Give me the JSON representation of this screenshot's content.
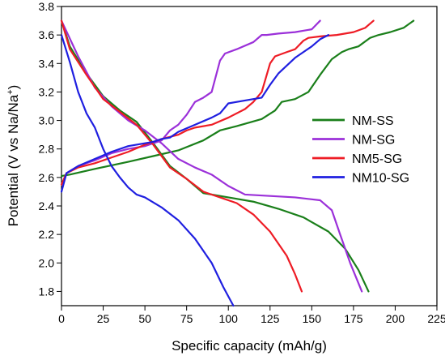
{
  "chart_data": {
    "type": "line",
    "title": "",
    "xlabel": "Specific capacity (mAh/g)",
    "ylabel_parts": {
      "main": "Potential (V vs Na/Na",
      "superscript": "+",
      "tail": ")"
    },
    "xlim": [
      0,
      225
    ],
    "ylim": [
      1.7,
      3.8
    ],
    "xticks": [
      "0",
      "25",
      "50",
      "75",
      "100",
      "125",
      "150",
      "175",
      "200",
      "225"
    ],
    "yticks": [
      "1.8",
      "2.0",
      "2.2",
      "2.4",
      "2.6",
      "2.8",
      "3.0",
      "3.2",
      "3.4",
      "3.6",
      "3.8"
    ],
    "grid": false,
    "legend_position": "center-right",
    "series": [
      {
        "name": "NM-SS",
        "color": "#1a7f1a",
        "charge": {
          "x": [
            0,
            5,
            20,
            40,
            55,
            70,
            85,
            95,
            105,
            120,
            128,
            132,
            140,
            148,
            155,
            162,
            168,
            172,
            178,
            185,
            190,
            197,
            205,
            211
          ],
          "y": [
            2.61,
            2.62,
            2.66,
            2.71,
            2.75,
            2.79,
            2.86,
            2.93,
            2.96,
            3.01,
            3.07,
            3.13,
            3.15,
            3.2,
            3.32,
            3.43,
            3.48,
            3.5,
            3.52,
            3.58,
            3.6,
            3.62,
            3.65,
            3.7
          ]
        },
        "discharge": {
          "x": [
            0,
            5,
            15,
            25,
            35,
            45,
            55,
            65,
            75,
            85,
            100,
            115,
            130,
            145,
            160,
            170,
            178,
            184
          ],
          "y": [
            3.7,
            3.52,
            3.33,
            3.17,
            3.07,
            2.99,
            2.84,
            2.68,
            2.59,
            2.49,
            2.46,
            2.43,
            2.38,
            2.32,
            2.22,
            2.1,
            1.95,
            1.8
          ]
        }
      },
      {
        "name": "NM-SG",
        "color": "#9b30d9",
        "charge": {
          "x": [
            0,
            3,
            10,
            20,
            30,
            40,
            50,
            60,
            65,
            70,
            75,
            80,
            85,
            90,
            95,
            98,
            105,
            115,
            120,
            123,
            130,
            140,
            150,
            155
          ],
          "y": [
            2.55,
            2.63,
            2.68,
            2.72,
            2.77,
            2.8,
            2.82,
            2.86,
            2.93,
            2.97,
            3.04,
            3.13,
            3.16,
            3.2,
            3.42,
            3.47,
            3.5,
            3.55,
            3.6,
            3.6,
            3.61,
            3.62,
            3.64,
            3.7
          ]
        },
        "discharge": {
          "x": [
            0,
            10,
            20,
            30,
            40,
            50,
            60,
            70,
            80,
            90,
            100,
            110,
            125,
            140,
            155,
            162,
            167,
            173,
            180
          ],
          "y": [
            3.7,
            3.45,
            3.23,
            3.1,
            3.0,
            2.93,
            2.84,
            2.73,
            2.67,
            2.62,
            2.54,
            2.48,
            2.47,
            2.46,
            2.44,
            2.37,
            2.2,
            2.0,
            1.8
          ]
        }
      },
      {
        "name": "NM5-SG",
        "color": "#ee1c25",
        "charge": {
          "x": [
            0,
            3,
            10,
            20,
            30,
            40,
            50,
            60,
            70,
            75,
            80,
            90,
            100,
            110,
            115,
            120,
            125,
            128,
            135,
            140,
            145,
            148,
            155,
            165,
            175,
            182,
            187
          ],
          "y": [
            2.55,
            2.63,
            2.67,
            2.7,
            2.74,
            2.78,
            2.83,
            2.87,
            2.9,
            2.93,
            2.95,
            2.97,
            3.02,
            3.08,
            3.13,
            3.2,
            3.4,
            3.45,
            3.48,
            3.5,
            3.56,
            3.58,
            3.59,
            3.6,
            3.62,
            3.65,
            3.7
          ]
        },
        "discharge": {
          "x": [
            0,
            5,
            15,
            25,
            35,
            45,
            55,
            65,
            75,
            85,
            95,
            105,
            115,
            125,
            135,
            140,
            144
          ],
          "y": [
            3.7,
            3.5,
            3.32,
            3.15,
            3.06,
            2.97,
            2.83,
            2.67,
            2.59,
            2.5,
            2.46,
            2.42,
            2.34,
            2.22,
            2.05,
            1.92,
            1.8
          ]
        }
      },
      {
        "name": "NM10-SG",
        "color": "#1f1fe0",
        "charge": {
          "x": [
            0,
            3,
            10,
            20,
            30,
            40,
            50,
            55,
            60,
            65,
            70,
            80,
            90,
            95,
            100,
            110,
            120,
            125,
            130,
            140,
            150,
            155,
            160
          ],
          "y": [
            2.5,
            2.63,
            2.68,
            2.73,
            2.78,
            2.82,
            2.84,
            2.85,
            2.87,
            2.88,
            2.92,
            2.97,
            3.02,
            3.05,
            3.12,
            3.14,
            3.16,
            3.25,
            3.33,
            3.44,
            3.52,
            3.57,
            3.6
          ]
        },
        "discharge": {
          "x": [
            0,
            5,
            10,
            15,
            20,
            25,
            30,
            35,
            40,
            45,
            50,
            60,
            70,
            80,
            90,
            97,
            103
          ],
          "y": [
            3.6,
            3.41,
            3.2,
            3.05,
            2.95,
            2.8,
            2.68,
            2.6,
            2.53,
            2.48,
            2.46,
            2.39,
            2.3,
            2.17,
            2.0,
            1.83,
            1.7
          ]
        }
      }
    ]
  }
}
